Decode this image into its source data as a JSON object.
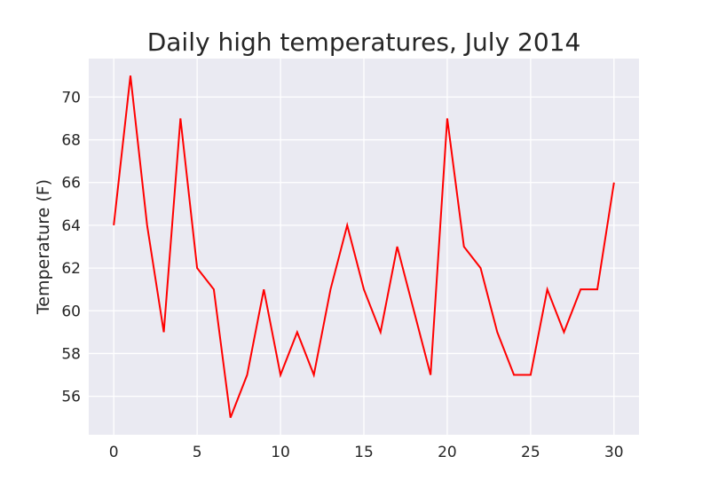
{
  "chart_data": {
    "type": "line",
    "title": "Daily high temperatures, July 2014",
    "xlabel": "",
    "ylabel": "Temperature (F)",
    "x": [
      0,
      1,
      2,
      3,
      4,
      5,
      6,
      7,
      8,
      9,
      10,
      11,
      12,
      13,
      14,
      15,
      16,
      17,
      18,
      19,
      20,
      21,
      22,
      23,
      24,
      25,
      26,
      27,
      28,
      29,
      30
    ],
    "series": [
      {
        "values": [
          64,
          71,
          64,
          59,
          69,
          62,
          61,
          55,
          57,
          61,
          57,
          59,
          57,
          61,
          64,
          61,
          59,
          63,
          60,
          57,
          69,
          63,
          62,
          59,
          57,
          57,
          61,
          59,
          61,
          61,
          66
        ],
        "color": "#ff0000"
      }
    ],
    "xlim": [
      -1.5,
      31.5
    ],
    "ylim": [
      54.2,
      71.8
    ],
    "xticks": [
      0,
      5,
      10,
      15,
      20,
      25,
      30
    ],
    "yticks": [
      56,
      58,
      60,
      62,
      64,
      66,
      68,
      70
    ],
    "grid": true,
    "background_color": "#eaeaf2",
    "grid_color": "#ffffff"
  }
}
